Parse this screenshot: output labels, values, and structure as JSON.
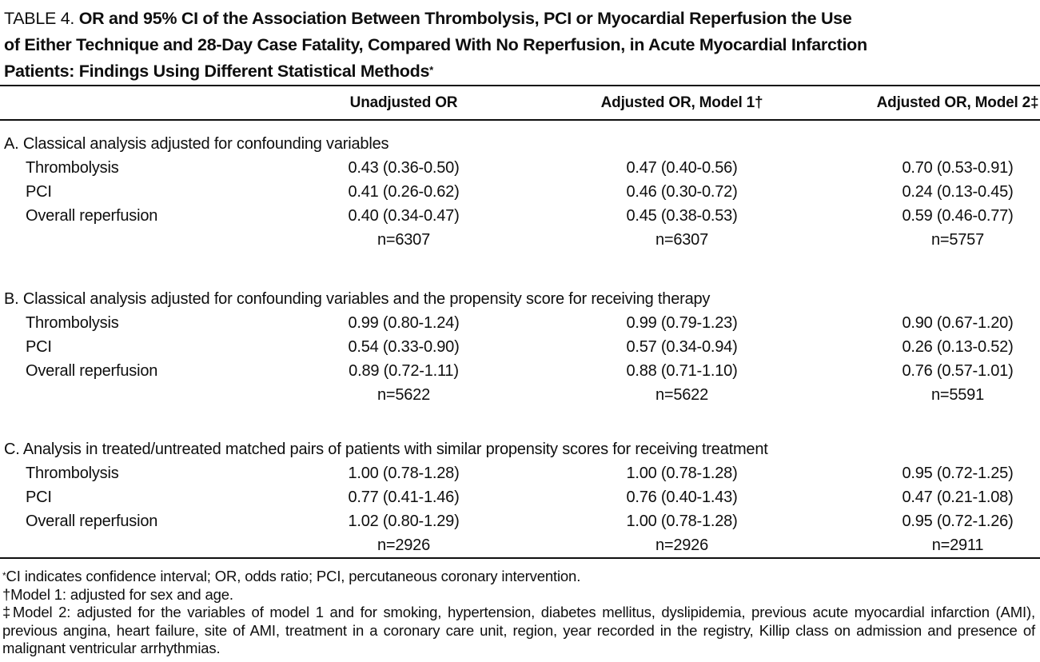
{
  "page": {
    "title": {
      "prefix": "TABLE 4.",
      "line1_rest": "OR and 95% CI of the Association Between Thrombolysis, PCI or Myocardial Reperfusion the Use",
      "line2": "of Either Technique and 28-Day Case Fatality, Compared With No Reperfusion, in Acute Myocardial Infarction",
      "line3": "Patients: Findings Using Different Statistical Methods",
      "footnote_marker": "*"
    },
    "table": {
      "column_headers": [
        "Unadjusted OR",
        "Adjusted OR, Model 1†",
        "Adjusted OR, Model 2‡"
      ],
      "sections": [
        {
          "heading": "A. Classical analysis adjusted for confounding variables",
          "rows": [
            {
              "label": "Thrombolysis",
              "values": [
                "0.43 (0.36-0.50)",
                "0.47 (0.40-0.56)",
                "0.70 (0.53-0.91)"
              ]
            },
            {
              "label": "PCI",
              "values": [
                "0.41 (0.26-0.62)",
                "0.46 (0.30-0.72)",
                "0.24 (0.13-0.45)"
              ]
            },
            {
              "label": "Overall reperfusion",
              "values": [
                "0.40 (0.34-0.47)",
                "0.45 (0.38-0.53)",
                "0.59 (0.46-0.77)"
              ]
            }
          ],
          "sample_sizes": [
            "n=6307",
            "n=6307",
            "n=5757"
          ]
        },
        {
          "heading": "B. Classical analysis adjusted for confounding variables and the propensity score for receiving therapy",
          "rows": [
            {
              "label": "Thrombolysis",
              "values": [
                "0.99 (0.80-1.24)",
                "0.99 (0.79-1.23)",
                "0.90 (0.67-1.20)"
              ]
            },
            {
              "label": "PCI",
              "values": [
                "0.54 (0.33-0.90)",
                "0.57 (0.34-0.94)",
                "0.26 (0.13-0.52)"
              ]
            },
            {
              "label": "Overall reperfusion",
              "values": [
                "0.89 (0.72-1.11)",
                "0.88 (0.71-1.10)",
                "0.76 (0.57-1.01)"
              ]
            }
          ],
          "sample_sizes": [
            "n=5622",
            "n=5622",
            "n=5591"
          ]
        },
        {
          "heading": "C. Analysis in treated/untreated matched pairs of patients with similar propensity scores for receiving treatment",
          "rows": [
            {
              "label": "Thrombolysis",
              "values": [
                "1.00 (0.78-1.28)",
                "1.00 (0.78-1.28)",
                "0.95 (0.72-1.25)"
              ]
            },
            {
              "label": "PCI",
              "values": [
                "0.77 (0.41-1.46)",
                "0.76 (0.40-1.43)",
                "0.47 (0.21-1.08)"
              ]
            },
            {
              "label": "Overall reperfusion",
              "values": [
                "1.02 (0.80-1.29)",
                "1.00 (0.78-1.28)",
                "0.95 (0.72-1.26)"
              ]
            }
          ],
          "sample_sizes": [
            "n=2926",
            "n=2926",
            "n=2911"
          ]
        }
      ]
    },
    "footnotes": [
      {
        "marker": "*",
        "text": "CI indicates confidence interval; OR, odds ratio; PCI, percutaneous coronary intervention."
      },
      {
        "marker": "†",
        "text": "Model 1: adjusted for sex and age."
      },
      {
        "marker": "‡",
        "text": "Model 2: adjusted for the variables of model 1 and for smoking, hypertension, diabetes mellitus, dyslipidemia, previous acute myocardial infarction (AMI), previous angina, heart failure, site of AMI, treatment in a coronary care unit, region, year recorded in the registry, Killip class on admission and presence of malignant ventricular arrhythmias."
      }
    ],
    "colors": {
      "text": "#0e0e0e",
      "background": "#ffffff",
      "rule": "#0e0e0e"
    }
  }
}
